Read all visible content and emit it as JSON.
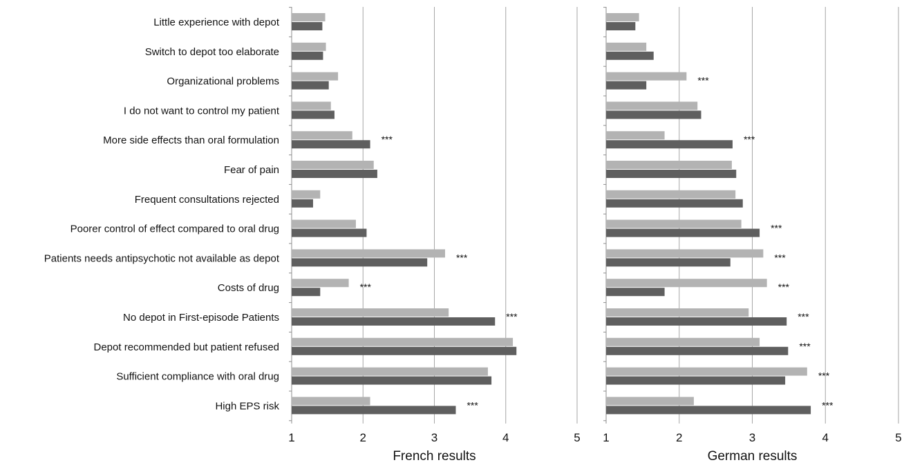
{
  "chart_data": {
    "type": "bar",
    "orientation": "horizontal",
    "categories": [
      "Little experience with depot",
      "Switch to depot too elaborate",
      "Organizational problems",
      "I do not want to control my patient",
      "More side effects than oral formulation",
      "Fear of pain",
      "Frequent consultations rejected",
      "Poorer control of effect compared to oral drug",
      "Patients needs antipsychotic not available as depot",
      "Costs of drug",
      "No depot in First-episode Patients",
      "Depot recommended but patient refused",
      "Sufficient compliance with oral drug",
      "High EPS risk"
    ],
    "series_colors": [
      "#b3b3b3",
      "#5f5f5f"
    ],
    "grid": true,
    "panels": [
      {
        "xlabel": "French results",
        "xlim": [
          1,
          5
        ],
        "ticks": [
          "1",
          "2",
          "3",
          "4",
          "5"
        ],
        "series": [
          {
            "values": [
              1.47,
              1.48,
              1.65,
              1.55,
              1.85,
              2.15,
              1.4,
              1.9,
              3.15,
              1.8,
              3.2,
              4.1,
              3.75,
              2.1
            ]
          },
          {
            "values": [
              1.43,
              1.44,
              1.52,
              1.6,
              2.1,
              2.2,
              1.3,
              2.05,
              2.9,
              1.4,
              3.85,
              4.15,
              3.8,
              3.3
            ]
          }
        ],
        "significance": [
          "",
          "",
          "",
          "",
          "***",
          "",
          "",
          "",
          "***",
          "***",
          "***",
          "",
          "",
          "***"
        ]
      },
      {
        "xlabel": "German results",
        "xlim": [
          1,
          5
        ],
        "ticks": [
          "1",
          "2",
          "3",
          "4",
          "5"
        ],
        "series": [
          {
            "values": [
              1.45,
              1.55,
              2.1,
              2.25,
              1.8,
              2.72,
              2.77,
              2.85,
              3.15,
              3.2,
              2.95,
              3.1,
              3.75,
              2.2
            ]
          },
          {
            "values": [
              1.4,
              1.65,
              1.55,
              2.3,
              2.73,
              2.78,
              2.87,
              3.1,
              2.7,
              1.8,
              3.47,
              3.49,
              3.45,
              3.8
            ]
          }
        ],
        "significance": [
          "",
          "",
          "***",
          "",
          "***",
          "",
          "",
          "***",
          "***",
          "***",
          "***",
          "***",
          "***",
          "***"
        ]
      }
    ]
  }
}
